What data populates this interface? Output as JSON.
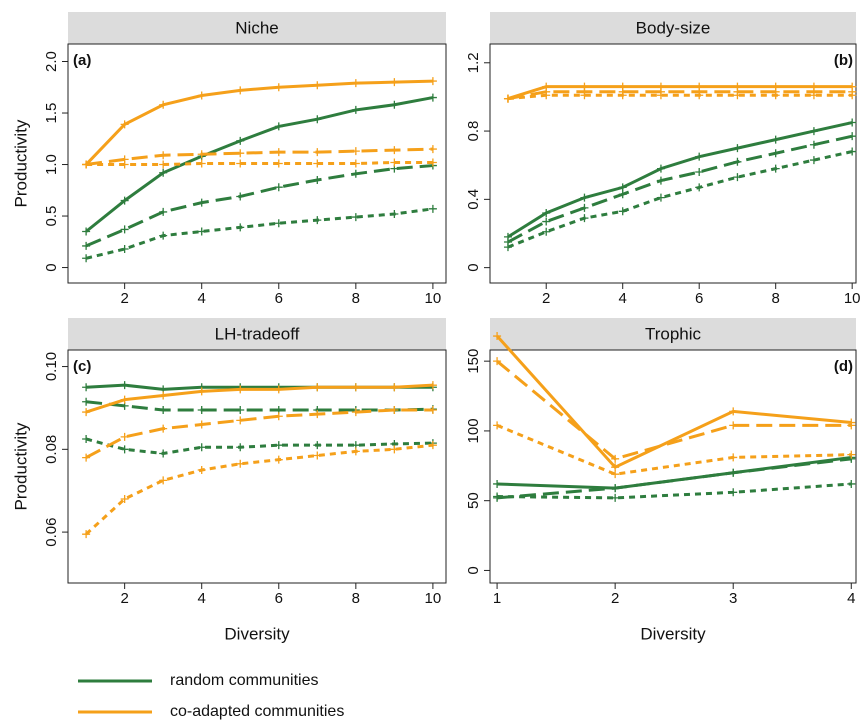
{
  "chart_data": [
    {
      "type": "line",
      "title": "Niche",
      "panel_label": "(a)",
      "label_corner": "left",
      "y_label": "Productivity",
      "x": [
        1,
        2,
        3,
        4,
        5,
        6,
        7,
        8,
        9,
        10
      ],
      "xlim": [
        0.53,
        10.34
      ],
      "xticks": [
        2,
        4,
        6,
        8,
        10
      ],
      "ylim": [
        -0.15,
        2.17
      ],
      "yticks": [
        0,
        0.5,
        {
          "value": 1,
          "label": "1.0"
        },
        1.5,
        {
          "value": 2,
          "label": "2.0"
        }
      ],
      "series": [
        {
          "color": "#2e7d3e",
          "dash": "solid",
          "values": [
            0.35,
            0.65,
            0.92,
            1.08,
            1.23,
            1.37,
            1.44,
            1.53,
            1.58,
            1.65
          ]
        },
        {
          "color": "#2e7d3e",
          "dash": "longdash",
          "values": [
            0.21,
            0.37,
            0.54,
            0.63,
            0.69,
            0.78,
            0.85,
            0.91,
            0.96,
            0.99
          ]
        },
        {
          "color": "#2e7d3e",
          "dash": "dash",
          "values": [
            0.09,
            0.18,
            0.31,
            0.35,
            0.39,
            0.43,
            0.46,
            0.49,
            0.52,
            0.57
          ]
        },
        {
          "color": "#f5a01a",
          "dash": "solid",
          "values": [
            1.0,
            1.39,
            1.58,
            1.67,
            1.72,
            1.75,
            1.77,
            1.79,
            1.8,
            1.81
          ]
        },
        {
          "color": "#f5a01a",
          "dash": "longdash",
          "values": [
            1.0,
            1.05,
            1.09,
            1.1,
            1.11,
            1.12,
            1.12,
            1.13,
            1.14,
            1.15
          ]
        },
        {
          "color": "#f5a01a",
          "dash": "dash",
          "values": [
            1.0,
            1.0,
            1.0,
            1.01,
            1.01,
            1.01,
            1.01,
            1.01,
            1.02,
            1.02
          ]
        }
      ]
    },
    {
      "type": "line",
      "title": "Body-size",
      "panel_label": "(b)",
      "label_corner": "right",
      "x": [
        1,
        2,
        3,
        4,
        5,
        6,
        7,
        8,
        9,
        10
      ],
      "xlim": [
        0.53,
        10.1
      ],
      "xticks": [
        2,
        4,
        6,
        8,
        10
      ],
      "ylim": [
        -0.09,
        1.31
      ],
      "yticks": [
        0,
        0.4,
        0.8,
        1.2
      ],
      "series": [
        {
          "color": "#2e7d3e",
          "dash": "solid",
          "values": [
            0.18,
            0.32,
            0.41,
            0.47,
            0.58,
            0.65,
            0.7,
            0.75,
            0.8,
            0.85
          ]
        },
        {
          "color": "#2e7d3e",
          "dash": "longdash",
          "values": [
            0.15,
            0.27,
            0.35,
            0.43,
            0.51,
            0.56,
            0.62,
            0.67,
            0.72,
            0.77
          ]
        },
        {
          "color": "#2e7d3e",
          "dash": "dash",
          "values": [
            0.12,
            0.21,
            0.29,
            0.33,
            0.41,
            0.47,
            0.53,
            0.58,
            0.63,
            0.68
          ]
        },
        {
          "color": "#f5a01a",
          "dash": "solid",
          "values": [
            0.99,
            1.06,
            1.06,
            1.06,
            1.06,
            1.06,
            1.06,
            1.06,
            1.06,
            1.06
          ]
        },
        {
          "color": "#f5a01a",
          "dash": "longdash",
          "values": [
            0.99,
            1.03,
            1.03,
            1.03,
            1.03,
            1.03,
            1.03,
            1.03,
            1.03,
            1.03
          ]
        },
        {
          "color": "#f5a01a",
          "dash": "dash",
          "values": [
            0.99,
            1.01,
            1.01,
            1.01,
            1.01,
            1.01,
            1.01,
            1.01,
            1.01,
            1.01
          ]
        }
      ]
    },
    {
      "type": "line",
      "title": "LH-tradeoff",
      "panel_label": "(c)",
      "label_corner": "left",
      "y_label": "Productivity",
      "x_label": "Diversity",
      "x": [
        1,
        2,
        3,
        4,
        5,
        6,
        7,
        8,
        9,
        10
      ],
      "xlim": [
        0.53,
        10.34
      ],
      "xticks": [
        2,
        4,
        6,
        8,
        10
      ],
      "ylim": [
        0.0477,
        0.104
      ],
      "yticks": [
        0.06,
        0.08,
        {
          "value": 0.1,
          "label": "0.10"
        }
      ],
      "series": [
        {
          "color": "#2e7d3e",
          "dash": "solid",
          "values": [
            0.095,
            0.0955,
            0.0945,
            0.095,
            0.095,
            0.095,
            0.095,
            0.095,
            0.095,
            0.095
          ]
        },
        {
          "color": "#2e7d3e",
          "dash": "longdash",
          "values": [
            0.0915,
            0.0905,
            0.0895,
            0.0895,
            0.0895,
            0.0895,
            0.0895,
            0.0895,
            0.0895,
            0.0897
          ]
        },
        {
          "color": "#2e7d3e",
          "dash": "dash",
          "values": [
            0.0825,
            0.08,
            0.079,
            0.0805,
            0.0805,
            0.081,
            0.081,
            0.081,
            0.0813,
            0.0815
          ]
        },
        {
          "color": "#f5a01a",
          "dash": "solid",
          "values": [
            0.089,
            0.092,
            0.093,
            0.094,
            0.0945,
            0.0945,
            0.095,
            0.095,
            0.095,
            0.0955
          ]
        },
        {
          "color": "#f5a01a",
          "dash": "longdash",
          "values": [
            0.078,
            0.083,
            0.085,
            0.086,
            0.087,
            0.088,
            0.0885,
            0.089,
            0.0895,
            0.0895
          ]
        },
        {
          "color": "#f5a01a",
          "dash": "dash",
          "values": [
            0.0595,
            0.068,
            0.0725,
            0.075,
            0.0765,
            0.0775,
            0.0785,
            0.0795,
            0.08,
            0.081
          ]
        }
      ]
    },
    {
      "type": "line",
      "title": "Trophic",
      "panel_label": "(d)",
      "label_corner": "right",
      "x_label": "Diversity",
      "x": [
        1,
        2,
        3,
        4
      ],
      "xlim": [
        0.94,
        4.04
      ],
      "xticks": [
        1,
        2,
        3,
        4
      ],
      "ylim": [
        -9,
        158
      ],
      "yticks": [
        0,
        50,
        100,
        150
      ],
      "series": [
        {
          "color": "#2e7d3e",
          "dash": "solid",
          "values": [
            62,
            59,
            70,
            81
          ]
        },
        {
          "color": "#2e7d3e",
          "dash": "longdash",
          "values": [
            52,
            59,
            70,
            80
          ]
        },
        {
          "color": "#2e7d3e",
          "dash": "dash",
          "values": [
            53,
            52,
            56,
            62
          ]
        },
        {
          "color": "#f5a01a",
          "dash": "solid",
          "values": [
            168,
            74,
            114,
            106
          ]
        },
        {
          "color": "#f5a01a",
          "dash": "longdash",
          "values": [
            150,
            80,
            104,
            104
          ]
        },
        {
          "color": "#f5a01a",
          "dash": "dash",
          "values": [
            104,
            69,
            81,
            83
          ]
        }
      ]
    }
  ],
  "legend": [
    {
      "name": "random communities",
      "color": "#2e7d3e"
    },
    {
      "name": "co-adapted communities",
      "color": "#f5a01a"
    }
  ]
}
